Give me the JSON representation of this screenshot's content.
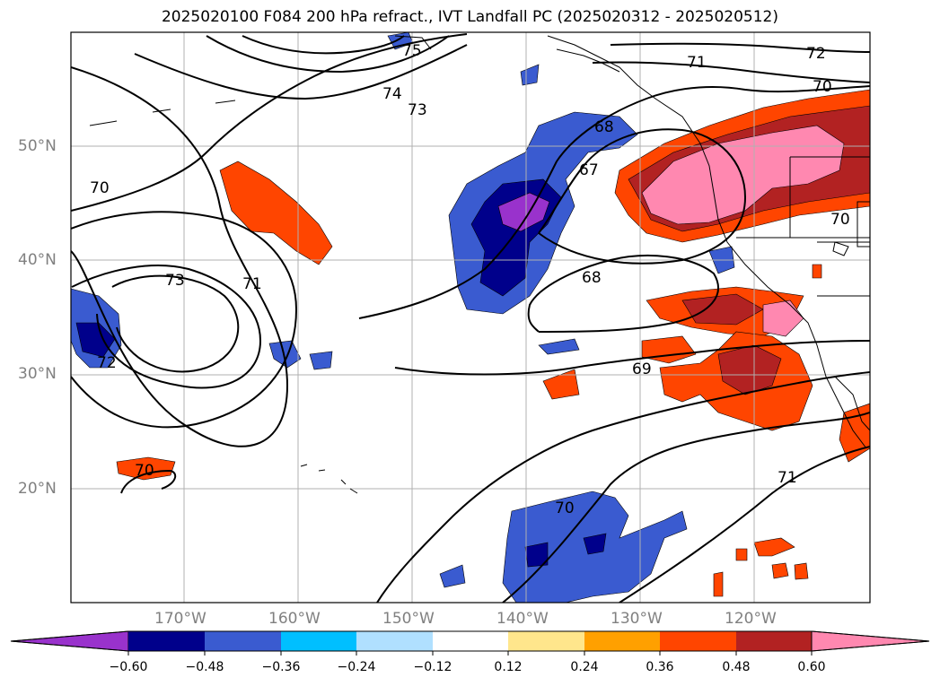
{
  "title": "2025020100 F084 200 hPa refract., IVT Landfall PC (2025020312 - 2025020512)",
  "map": {
    "lat_labels": [
      "50°N",
      "40°N",
      "30°N",
      "20°N"
    ],
    "lon_labels": [
      "170°W",
      "160°W",
      "150°W",
      "140°W",
      "130°W",
      "120°W"
    ],
    "contour_labels": [
      "75",
      "74",
      "73",
      "72",
      "71",
      "70",
      "70",
      "68",
      "67",
      "68",
      "73",
      "71",
      "72",
      "69",
      "70",
      "70",
      "71",
      "70"
    ]
  },
  "colorbar": {
    "ticks": [
      "−0.60",
      "−0.48",
      "−0.36",
      "−0.24",
      "−0.12",
      "0.12",
      "0.24",
      "0.36",
      "0.48",
      "0.60"
    ],
    "colors": [
      "#9932cc",
      "#00008b",
      "#3a5bd0",
      "#00bfff",
      "#b0e0ff",
      "#ffffff",
      "#ffe68c",
      "#ffa000",
      "#ff4500",
      "#b22222",
      "#ff88b0"
    ]
  }
}
